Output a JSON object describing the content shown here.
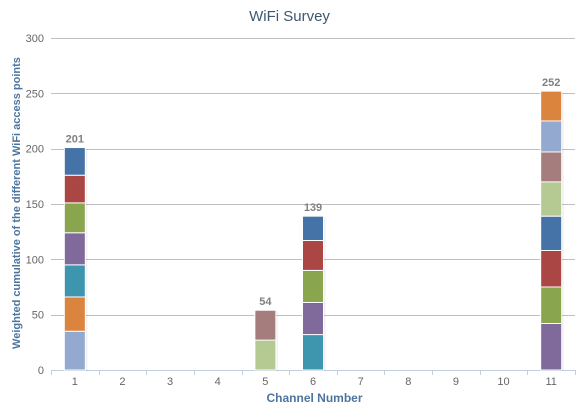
{
  "chart_data": {
    "type": "bar",
    "stacked": true,
    "title": "WiFi Survey",
    "xlabel": "Channel Number",
    "ylabel": "Weighted cumulative of the different WiFi access points",
    "categories": [
      "1",
      "2",
      "3",
      "4",
      "5",
      "6",
      "7",
      "8",
      "9",
      "10",
      "11"
    ],
    "ylim": [
      0,
      300
    ],
    "yticks": [
      0,
      50,
      100,
      150,
      200,
      250,
      300
    ],
    "grid": true,
    "legend": "none",
    "totals": [
      201,
      null,
      null,
      null,
      54,
      139,
      null,
      null,
      null,
      null,
      252
    ],
    "stacks": [
      {
        "category": "1",
        "segments": [
          {
            "value": 35,
            "color": "#93a9cf"
          },
          {
            "value": 31,
            "color": "#db843d"
          },
          {
            "value": 29,
            "color": "#3d96ae"
          },
          {
            "value": 29,
            "color": "#80699b"
          },
          {
            "value": 27,
            "color": "#89a54e"
          },
          {
            "value": 25,
            "color": "#aa4643"
          },
          {
            "value": 25,
            "color": "#4572a7"
          }
        ]
      },
      {
        "category": "5",
        "segments": [
          {
            "value": 27,
            "color": "#b5ca92"
          },
          {
            "value": 27,
            "color": "#a47d7c"
          }
        ]
      },
      {
        "category": "6",
        "segments": [
          {
            "value": 32,
            "color": "#3d96ae"
          },
          {
            "value": 29,
            "color": "#80699b"
          },
          {
            "value": 29,
            "color": "#89a54e"
          },
          {
            "value": 27,
            "color": "#aa4643"
          },
          {
            "value": 22,
            "color": "#4572a7"
          }
        ]
      },
      {
        "category": "11",
        "segments": [
          {
            "value": 42,
            "color": "#80699b"
          },
          {
            "value": 33,
            "color": "#89a54e"
          },
          {
            "value": 33,
            "color": "#aa4643"
          },
          {
            "value": 31,
            "color": "#4572a7"
          },
          {
            "value": 31,
            "color": "#b5ca92"
          },
          {
            "value": 27,
            "color": "#a47d7c"
          },
          {
            "value": 28,
            "color": "#93a9cf"
          },
          {
            "value": 27,
            "color": "#db843d"
          }
        ]
      }
    ]
  },
  "colors": {
    "title": "#3e576f",
    "axis_title": "#4d759e",
    "tick_label": "#666666",
    "total_label": "#808080",
    "grid": "#c0c0c0",
    "axis": "#c0d0e0"
  }
}
